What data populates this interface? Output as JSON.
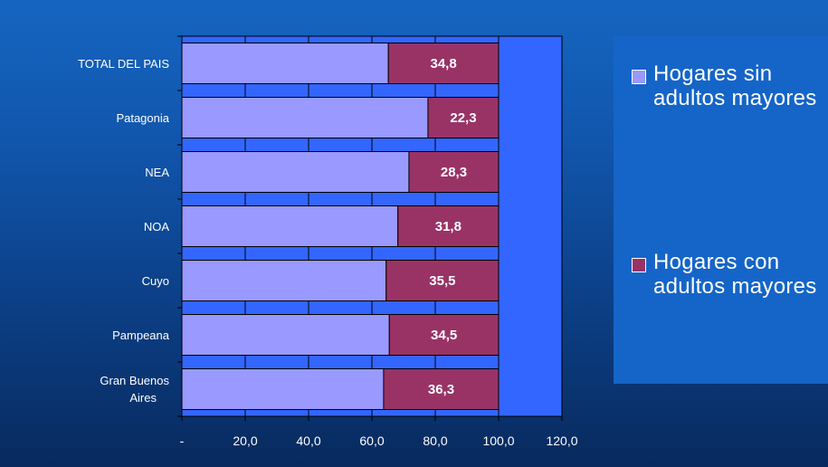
{
  "chart_data": {
    "type": "bar",
    "orientation": "horizontal",
    "stacked": true,
    "categories": [
      "TOTAL DEL PAIS",
      "Patagonia",
      "NEA",
      "NOA",
      "Cuyo",
      "Pampeana",
      "Gran Buenos Aires"
    ],
    "series": [
      {
        "name": "Hogares sin adultos mayores",
        "values": [
          65.2,
          77.7,
          71.7,
          68.2,
          64.5,
          65.5,
          63.7
        ],
        "color": "#9999ff"
      },
      {
        "name": "Hogares con adultos mayores",
        "values": [
          34.8,
          22.3,
          28.3,
          31.8,
          35.5,
          34.5,
          36.3
        ],
        "color": "#993366",
        "data_labels": [
          "34,8",
          "22,3",
          "28,3",
          "31,8",
          "35,5",
          "34,5",
          "36,3"
        ]
      }
    ],
    "xlim": [
      0,
      120
    ],
    "x_ticks": [
      0,
      20,
      40,
      60,
      80,
      100,
      120
    ],
    "x_tick_labels": [
      "-",
      "20,0",
      "40,0",
      "60,0",
      "80,0",
      "100,0",
      "120,0"
    ],
    "plot_background": "#3366ff",
    "legend_position": "right",
    "title": "",
    "xlabel": "",
    "ylabel": ""
  }
}
